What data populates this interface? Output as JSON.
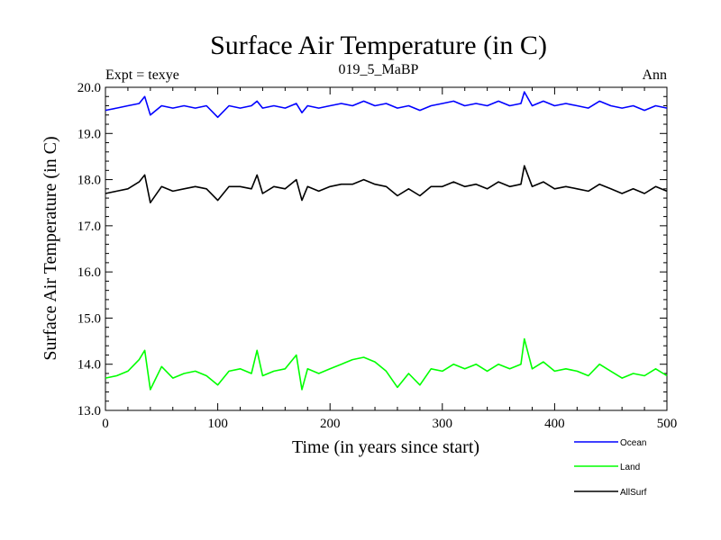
{
  "chart_data": {
    "type": "line",
    "title": "Surface Air Temperature (in C)",
    "subtitle": "019_5_MaBP",
    "left_annotation": "Expt = texye",
    "right_annotation": "Ann",
    "xlabel": "Time (in years since start)",
    "ylabel": "Surface Air Temperature (in C)",
    "xlim": [
      0,
      500
    ],
    "ylim": [
      13.0,
      20.0
    ],
    "xticks": [
      0,
      100,
      200,
      300,
      400,
      500
    ],
    "xtick_labels": [
      "0",
      "100",
      "200",
      "300",
      "400",
      "500"
    ],
    "yticks": [
      13.0,
      14.0,
      15.0,
      16.0,
      17.0,
      18.0,
      19.0,
      20.0
    ],
    "ytick_labels": [
      "13.0",
      "14.0",
      "15.0",
      "16.0",
      "17.0",
      "18.0",
      "19.0",
      "20.0"
    ],
    "grid": false,
    "legend_position": "bottom-right",
    "x": [
      0,
      10,
      20,
      30,
      35,
      40,
      50,
      60,
      70,
      80,
      90,
      100,
      110,
      120,
      130,
      135,
      140,
      150,
      160,
      170,
      175,
      180,
      190,
      200,
      210,
      220,
      230,
      240,
      250,
      260,
      270,
      280,
      290,
      300,
      310,
      320,
      330,
      340,
      350,
      360,
      370,
      373,
      380,
      390,
      400,
      410,
      420,
      430,
      440,
      450,
      460,
      470,
      480,
      490,
      500
    ],
    "series": [
      {
        "name": "Ocean",
        "color": "#0000ff",
        "values": [
          19.5,
          19.55,
          19.6,
          19.65,
          19.8,
          19.4,
          19.6,
          19.55,
          19.6,
          19.55,
          19.6,
          19.35,
          19.6,
          19.55,
          19.6,
          19.7,
          19.55,
          19.6,
          19.55,
          19.65,
          19.45,
          19.6,
          19.55,
          19.6,
          19.65,
          19.6,
          19.7,
          19.6,
          19.65,
          19.55,
          19.6,
          19.5,
          19.6,
          19.65,
          19.7,
          19.6,
          19.65,
          19.6,
          19.7,
          19.6,
          19.65,
          19.9,
          19.6,
          19.7,
          19.6,
          19.65,
          19.6,
          19.55,
          19.7,
          19.6,
          19.55,
          19.6,
          19.5,
          19.6,
          19.55
        ]
      },
      {
        "name": "Land",
        "color": "#00ff00",
        "values": [
          13.7,
          13.75,
          13.85,
          14.1,
          14.3,
          13.45,
          13.95,
          13.7,
          13.8,
          13.85,
          13.75,
          13.55,
          13.85,
          13.9,
          13.8,
          14.3,
          13.75,
          13.85,
          13.9,
          14.2,
          13.45,
          13.9,
          13.8,
          13.9,
          14.0,
          14.1,
          14.15,
          14.05,
          13.85,
          13.5,
          13.8,
          13.55,
          13.9,
          13.85,
          14.0,
          13.9,
          14.0,
          13.85,
          14.0,
          13.9,
          14.0,
          14.55,
          13.9,
          14.05,
          13.85,
          13.9,
          13.85,
          13.75,
          14.0,
          13.85,
          13.7,
          13.8,
          13.75,
          13.9,
          13.75
        ]
      },
      {
        "name": "AllSurf",
        "color": "#000000",
        "values": [
          17.7,
          17.75,
          17.8,
          17.95,
          18.1,
          17.5,
          17.85,
          17.75,
          17.8,
          17.85,
          17.8,
          17.55,
          17.85,
          17.85,
          17.8,
          18.1,
          17.7,
          17.85,
          17.8,
          18.0,
          17.55,
          17.85,
          17.75,
          17.85,
          17.9,
          17.9,
          18.0,
          17.9,
          17.85,
          17.65,
          17.8,
          17.65,
          17.85,
          17.85,
          17.95,
          17.85,
          17.9,
          17.8,
          17.95,
          17.85,
          17.9,
          18.3,
          17.85,
          17.95,
          17.8,
          17.85,
          17.8,
          17.75,
          17.9,
          17.8,
          17.7,
          17.8,
          17.7,
          17.85,
          17.75
        ]
      }
    ]
  }
}
